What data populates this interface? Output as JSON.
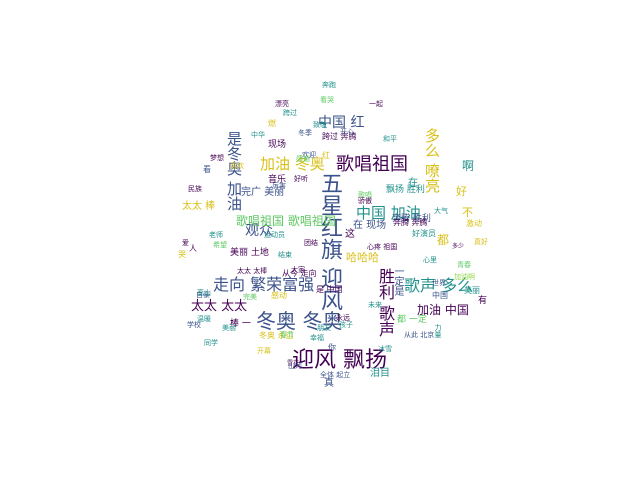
{
  "palette": {
    "dark_purple": "#440154",
    "indigo": "#3b528b",
    "teal": "#21918c",
    "green": "#5ec962",
    "yellow": "#d8c11a",
    "light_green": "#8fd744"
  },
  "words": [
    {
      "text": "迎风 飘扬",
      "color": "dark_purple"
    },
    {
      "text": "五星红旗 迎风",
      "color": "indigo"
    },
    {
      "text": "冬奥 冬奥",
      "color": "indigo"
    },
    {
      "text": "歌唱祖国",
      "color": "dark_purple"
    },
    {
      "text": "加油 冬奥",
      "color": "yellow"
    },
    {
      "text": "走向 繁荣富强",
      "color": "indigo"
    },
    {
      "text": "歌声 多么",
      "color": "teal"
    },
    {
      "text": "胜利 歌声",
      "color": "dark_purple"
    },
    {
      "text": "中国 加油",
      "color": "teal"
    },
    {
      "text": "是冬奥 加油",
      "color": "indigo"
    },
    {
      "text": "多么 嘹亮",
      "color": "yellow"
    },
    {
      "text": "中国 红",
      "color": "indigo"
    },
    {
      "text": "观众",
      "color": "indigo"
    },
    {
      "text": "太太 太太",
      "color": "dark_purple"
    },
    {
      "text": "加油 中国",
      "color": "dark_purple"
    },
    {
      "text": "歌唱祖国 歌唱祖国",
      "color": "green"
    },
    {
      "text": "啊",
      "color": "teal"
    },
    {
      "text": "都",
      "color": "yellow"
    },
    {
      "text": "好",
      "color": "yellow"
    },
    {
      "text": "这",
      "color": "dark_purple"
    },
    {
      "text": "哈哈哈",
      "color": "yellow"
    },
    {
      "text": "在 现场",
      "color": "indigo"
    },
    {
      "text": "一定是",
      "color": "indigo"
    },
    {
      "text": "飘扬 胜利",
      "color": "teal"
    },
    {
      "text": "奔腾 胜利",
      "color": "indigo"
    },
    {
      "text": "太太 棒",
      "color": "yellow"
    },
    {
      "text": "从今 走向",
      "color": "dark_purple"
    },
    {
      "text": "是 中国",
      "color": "dark_purple"
    },
    {
      "text": "冬奥 永远",
      "color": "yellow"
    },
    {
      "text": "感动",
      "color": "yellow"
    },
    {
      "text": "棒 一",
      "color": "dark_purple"
    },
    {
      "text": "你",
      "color": "indigo"
    },
    {
      "text": "真",
      "color": "indigo"
    },
    {
      "text": "泪目",
      "color": "teal"
    },
    {
      "text": "完广 美丽",
      "color": "indigo"
    },
    {
      "text": "音乐",
      "color": "dark_purple"
    },
    {
      "text": "现场",
      "color": "dark_purple"
    },
    {
      "text": "都 一定",
      "color": "green"
    },
    {
      "text": "在",
      "color": "teal"
    },
    {
      "text": "不",
      "color": "yellow"
    },
    {
      "text": "有",
      "color": "dark_purple"
    },
    {
      "text": "美丽 土地",
      "color": "dark_purple"
    },
    {
      "text": "太太 太棒",
      "color": "dark_purple"
    },
    {
      "text": "跨过 奔腾",
      "color": "dark_purple"
    },
    {
      "text": "好演员",
      "color": "teal"
    },
    {
      "text": "奔腾 奔腾",
      "color": "dark_purple"
    },
    {
      "text": "激动",
      "color": "yellow"
    },
    {
      "text": "自豪",
      "color": "indigo"
    },
    {
      "text": "中国",
      "color": "indigo"
    },
    {
      "text": "红",
      "color": "yellow"
    },
    {
      "text": "哭",
      "color": "yellow"
    },
    {
      "text": "人",
      "color": "dark_purple"
    },
    {
      "text": "高山",
      "color": "teal"
    },
    {
      "text": "学校",
      "color": "indigo"
    },
    {
      "text": "全体 起立",
      "color": "indigo"
    },
    {
      "text": "心疼 祖国",
      "color": "dark_purple"
    },
    {
      "text": "多少",
      "color": "dark_purple"
    },
    {
      "text": "美丽",
      "color": "teal"
    },
    {
      "text": "美丽",
      "color": "teal"
    },
    {
      "text": "春节",
      "color": "green"
    },
    {
      "text": "欢迎",
      "color": "indigo"
    },
    {
      "text": "结束",
      "color": "teal"
    },
    {
      "text": "跨过",
      "color": "teal"
    },
    {
      "text": "从此 北京",
      "color": "indigo"
    },
    {
      "text": "大家",
      "color": "dark_purple"
    },
    {
      "text": "朋友",
      "color": "teal"
    },
    {
      "text": "歌唱",
      "color": "green"
    },
    {
      "text": "雪花",
      "color": "dark_purple"
    },
    {
      "text": "孩子",
      "color": "teal"
    },
    {
      "text": "看",
      "color": "indigo"
    },
    {
      "text": "老师",
      "color": "teal"
    },
    {
      "text": "同学",
      "color": "teal"
    },
    {
      "text": "温暖",
      "color": "teal"
    },
    {
      "text": "青春",
      "color": "green"
    },
    {
      "text": "开幕",
      "color": "yellow"
    },
    {
      "text": "一起",
      "color": "dark_purple"
    },
    {
      "text": "开心",
      "color": "indigo"
    },
    {
      "text": "世界",
      "color": "indigo"
    },
    {
      "text": "未来",
      "color": "teal"
    },
    {
      "text": "运动员",
      "color": "teal"
    },
    {
      "text": "希望",
      "color": "green"
    },
    {
      "text": "感谢",
      "color": "green"
    },
    {
      "text": "力量",
      "color": "teal"
    },
    {
      "text": "骄傲",
      "color": "dark_purple"
    },
    {
      "text": "梦想",
      "color": "dark_purple"
    },
    {
      "text": "喜欢",
      "color": "yellow"
    },
    {
      "text": "漂亮",
      "color": "dark_purple"
    },
    {
      "text": "冰雪",
      "color": "teal"
    },
    {
      "text": "幸福",
      "color": "teal"
    },
    {
      "text": "和平",
      "color": "teal"
    },
    {
      "text": "团结",
      "color": "dark_purple"
    },
    {
      "text": "厉害",
      "color": "indigo"
    },
    {
      "text": "燃",
      "color": "yellow"
    },
    {
      "text": "爱",
      "color": "dark_purple"
    },
    {
      "text": "好听",
      "color": "dark_purple"
    },
    {
      "text": "大气",
      "color": "teal"
    },
    {
      "text": "永远",
      "color": "dark_purple"
    },
    {
      "text": "致敬",
      "color": "teal"
    },
    {
      "text": "真好",
      "color": "yellow"
    },
    {
      "text": "加油啊",
      "color": "light_green"
    },
    {
      "text": "冬季",
      "color": "indigo"
    },
    {
      "text": "看哭",
      "color": "green"
    },
    {
      "text": "完美",
      "color": "green"
    },
    {
      "text": "奔跑",
      "color": "teal"
    },
    {
      "text": "中华",
      "color": "teal"
    },
    {
      "text": "民族",
      "color": "dark_purple"
    },
    {
      "text": "心里",
      "color": "teal"
    },
    {
      "text": "山河",
      "color": "indigo"
    }
  ]
}
